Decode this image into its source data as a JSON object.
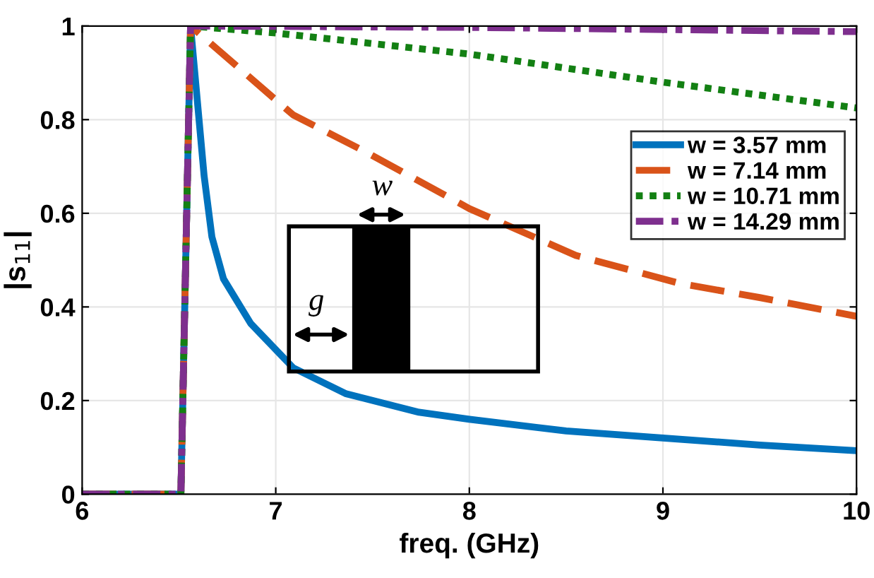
{
  "chart_data": {
    "type": "line",
    "xlabel": "freq. (GHz)",
    "ylabel": "|s$_{11}$|",
    "xlim": [
      6,
      10
    ],
    "ylim": [
      0,
      1
    ],
    "xticks": [
      6,
      7,
      8,
      9,
      10
    ],
    "yticks": [
      0,
      0.2,
      0.4,
      0.6,
      0.8,
      1
    ],
    "grid": true,
    "legend": "right",
    "marker": "none",
    "annotations": [
      "w",
      "g"
    ],
    "series": [
      {
        "name": "w = 3.57 mm",
        "color": "#0072bd",
        "line_style": "solid",
        "x": [
          6,
          6.51,
          6.56,
          6.63,
          6.67,
          6.73,
          6.87,
          7.09,
          7.36,
          7.74,
          8.0,
          8.5,
          9.0,
          9.5,
          10
        ],
        "values": [
          0,
          0,
          1,
          0.68,
          0.55,
          0.46,
          0.365,
          0.27,
          0.215,
          0.175,
          0.16,
          0.135,
          0.12,
          0.105,
          0.093
        ]
      },
      {
        "name": "w = 7.14 mm",
        "color": "#d95319",
        "line_style": "dashed",
        "x": [
          6,
          6.51,
          6.56,
          7.09,
          7.47,
          8.0,
          8.55,
          9.09,
          9.5,
          10
        ],
        "values": [
          0,
          0,
          1,
          0.81,
          0.73,
          0.61,
          0.51,
          0.45,
          0.42,
          0.38
        ]
      },
      {
        "name": "w = 10.71 mm",
        "color": "#138013",
        "line_style": "dotted",
        "x": [
          6,
          6.51,
          6.56,
          7.0,
          8.0,
          9.0,
          10
        ],
        "values": [
          0,
          0,
          1,
          0.985,
          0.94,
          0.88,
          0.825
        ]
      },
      {
        "name": "w = 14.29 mm",
        "color": "#7e2f8e",
        "line_style": "dashdot",
        "x": [
          6,
          6.51,
          6.56,
          8.0,
          10
        ],
        "values": [
          0,
          0,
          1,
          0.997,
          0.988
        ]
      }
    ]
  }
}
